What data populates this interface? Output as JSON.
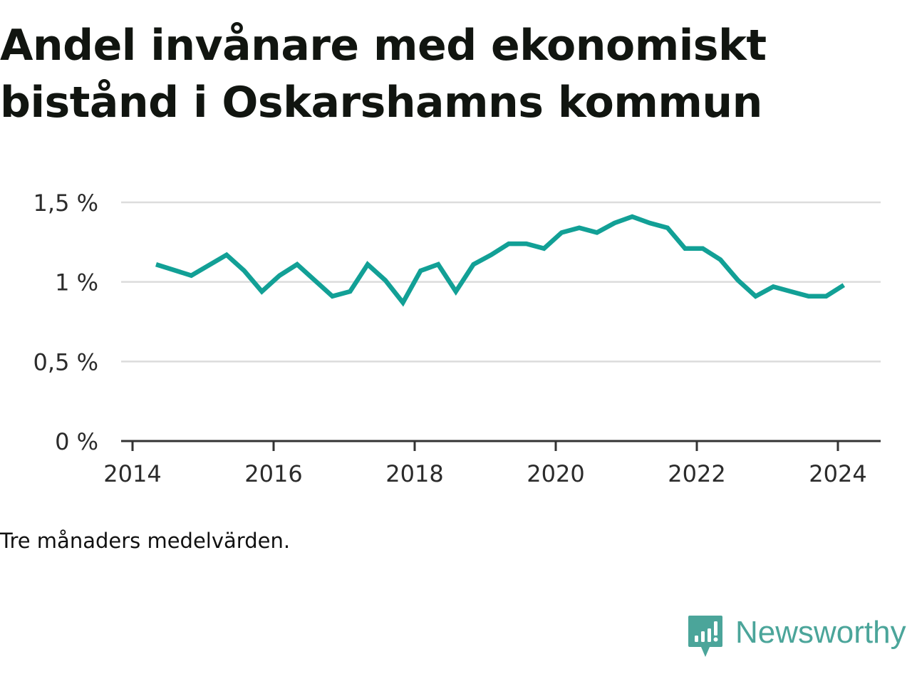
{
  "title": "Andel invånare med ekonomiskt bistånd i Oskarshamns kommun",
  "caption": "Tre månaders medelvärden.",
  "brand": {
    "name": "Newsworthy",
    "icon": "newsworthy-logo-icon",
    "color": "#4ba59a"
  },
  "chart_data": {
    "type": "line",
    "title": "Andel invånare med ekonomiskt bistånd i Oskarshamns kommun",
    "xlabel": "",
    "ylabel": "",
    "grid": true,
    "legend": "none",
    "line_color": "#12a096",
    "ylim": [
      0,
      1.5
    ],
    "yticks": [
      0,
      0.5,
      1,
      1.5
    ],
    "ytick_labels": [
      "0 %",
      "0,5 %",
      "1 %",
      "1,5 %"
    ],
    "xlim": [
      "2014-01",
      "2024-12"
    ],
    "xticks": [
      2014,
      2016,
      2018,
      2020,
      2022,
      2024
    ],
    "xtick_labels": [
      "2014",
      "2016",
      "2018",
      "2020",
      "2022",
      "2024"
    ],
    "x": [
      "2014-05",
      "2014-11",
      "2015-05",
      "2015-08",
      "2015-11",
      "2016-02",
      "2016-05",
      "2016-11",
      "2017-02",
      "2017-05",
      "2017-08",
      "2017-11",
      "2018-02",
      "2018-05",
      "2018-08",
      "2018-11",
      "2019-02",
      "2019-05",
      "2019-08",
      "2019-11",
      "2020-02",
      "2020-05",
      "2020-08",
      "2020-11",
      "2021-02",
      "2021-05",
      "2021-08",
      "2021-11",
      "2022-02",
      "2022-05",
      "2022-08",
      "2022-11",
      "2023-02",
      "2023-05",
      "2023-08",
      "2023-11",
      "2024-02"
    ],
    "series": [
      {
        "values": [
          1.11,
          1.04,
          1.17,
          1.07,
          0.94,
          1.04,
          1.11,
          0.91,
          0.94,
          1.11,
          1.01,
          0.87,
          1.07,
          1.11,
          0.94,
          1.11,
          1.17,
          1.24,
          1.24,
          1.21,
          1.31,
          1.34,
          1.31,
          1.37,
          1.41,
          1.37,
          1.34,
          1.21,
          1.21,
          1.14,
          1.01,
          0.91,
          0.97,
          0.94,
          0.91,
          0.91,
          0.98
        ]
      }
    ]
  }
}
